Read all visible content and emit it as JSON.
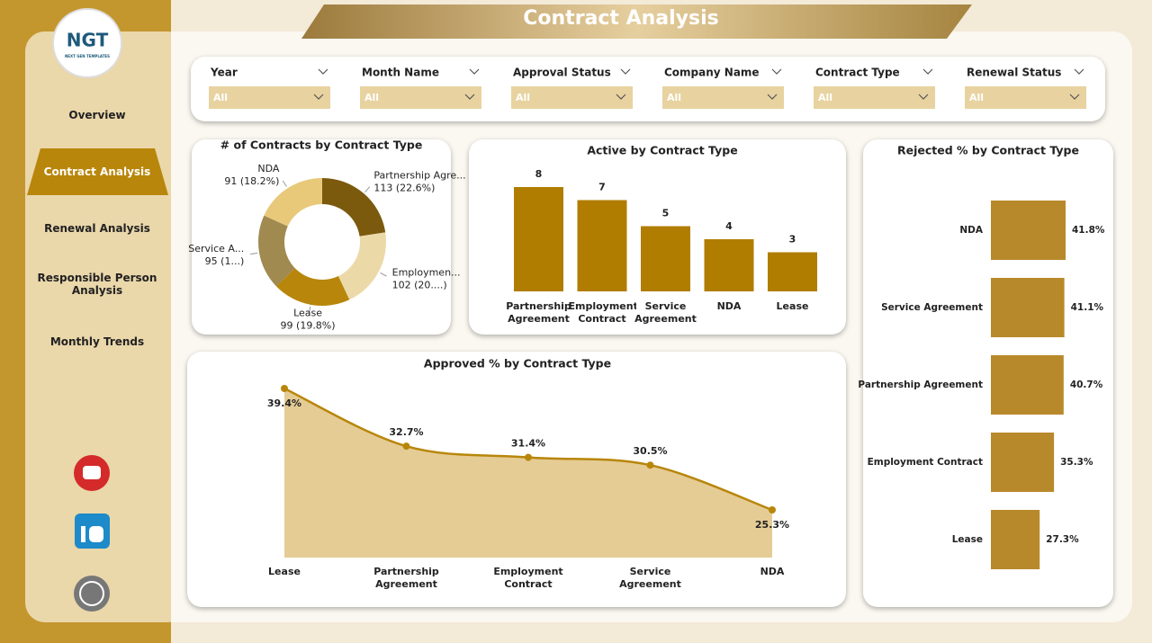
{
  "header": {
    "title": "Contract Analysis"
  },
  "logo": {
    "text": "NGT",
    "tagline": "NEXT GEN TEMPLATES"
  },
  "nav": {
    "items": [
      "Overview",
      "Contract Analysis",
      "Renewal Analysis",
      "Responsible Person Analysis",
      "Monthly Trends"
    ],
    "active": 1
  },
  "filters": [
    {
      "label": "Year",
      "value": "All"
    },
    {
      "label": "Month Name",
      "value": "All"
    },
    {
      "label": "Approval Status",
      "value": "All"
    },
    {
      "label": "Company Name",
      "value": "All"
    },
    {
      "label": "Contract Type",
      "value": "All"
    },
    {
      "label": "Renewal Status",
      "value": "All"
    }
  ],
  "chart_data": [
    {
      "type": "donut",
      "title": "# of Contracts by Contract Type",
      "categories": [
        "Partnership Agre...",
        "Employmen...",
        "Lease",
        "Service A...",
        "NDA"
      ],
      "values": [
        113,
        102,
        99,
        95,
        91
      ],
      "value_labels": [
        "113 (22.6%)",
        "102 (20....)",
        "99 (19.8%)",
        "95 (1...)",
        "91 (18.2%)"
      ],
      "colors": [
        "#7b5a0e",
        "#ecd9a8",
        "#b8860b",
        "#a08a50",
        "#e8c97a"
      ]
    },
    {
      "type": "bar",
      "title": "Active by Contract Type",
      "categories": [
        "Partnership Agreement",
        "Employment Contract",
        "Service Agreement",
        "NDA",
        "Lease"
      ],
      "values": [
        8,
        7,
        5,
        4,
        3
      ],
      "color": "#b07d00"
    },
    {
      "type": "area",
      "title": "Approved % by Contract Type",
      "categories": [
        "Lease",
        "Partnership Agreement",
        "Employment Contract",
        "Service Agreement",
        "NDA"
      ],
      "values": [
        39.4,
        32.7,
        31.4,
        30.5,
        25.3
      ],
      "value_labels": [
        "39.4%",
        "32.7%",
        "31.4%",
        "30.5%",
        "25.3%"
      ],
      "color": "#b8860b",
      "fill": "#e5cc95"
    },
    {
      "type": "hbar",
      "title": "Rejected % by Contract Type",
      "categories": [
        "NDA",
        "Service Agreement",
        "Partnership Agreement",
        "Employment Contract",
        "Lease"
      ],
      "values": [
        41.8,
        41.1,
        40.7,
        35.3,
        27.3
      ],
      "value_labels": [
        "41.8%",
        "41.1%",
        "40.7%",
        "35.3%",
        "27.3%"
      ],
      "color": "#b8892a"
    }
  ]
}
